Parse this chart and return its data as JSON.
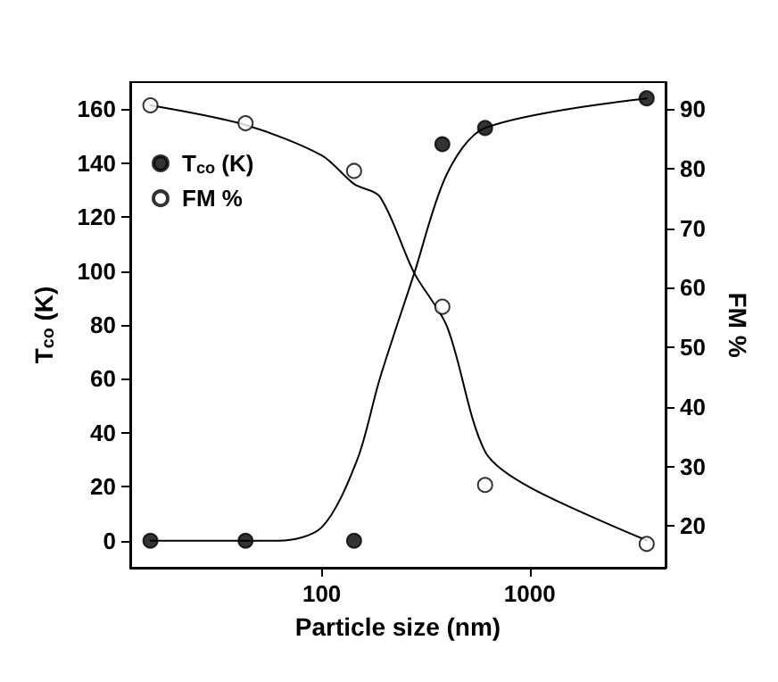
{
  "chart_data": {
    "type": "scatter",
    "xlabel": "Particle size (nm)",
    "ylabel": "T$_{co}$ (K)",
    "y2label": "FM %",
    "x": [
      15,
      43,
      143,
      380,
      610,
      3650
    ],
    "series": [
      {
        "name": "T$_{co}$ (K)",
        "color": "#000000",
        "marker": "circle",
        "values": [
          0,
          0,
          0,
          147,
          153,
          164
        ]
      },
      {
        "name": "FM %",
        "color": "#ffffff",
        "marker": "circle",
        "axis": "y2",
        "values": [
          90.6,
          87.6,
          79.6,
          56.8,
          26.9,
          17
        ]
      },
      {
        "type": "line",
        "color": "#000000",
        "marker": "none",
        "x": [
          15,
          62,
          100,
          148,
          190,
          278,
          400,
          610,
          3650
        ],
        "values": [
          0,
          0,
          5,
          30,
          60,
          99,
          136,
          153,
          164
        ]
      },
      {
        "type": "line",
        "color": "#000000",
        "marker": "none",
        "axis": "y2",
        "x": [
          15,
          43,
          100,
          143,
          190,
          278,
          400,
          610,
          1000,
          3650
        ],
        "values": [
          90.6,
          87.3,
          82.2,
          77.4,
          75.3,
          62.5,
          53.5,
          32.5,
          26.5,
          17.6
        ]
      }
    ],
    "log": "x",
    "xlim": [
      12,
      4500
    ],
    "xticks": [
      100,
      1000
    ],
    "ylim": [
      -10,
      170
    ],
    "yticks": [
      0,
      20,
      40,
      60,
      80,
      100,
      120,
      140,
      160
    ],
    "y2lim": [
      13,
      94.5
    ],
    "y2ticks": [
      20,
      30,
      40,
      50,
      60,
      70,
      80,
      90
    ],
    "legend": "top left",
    "grid": false
  }
}
